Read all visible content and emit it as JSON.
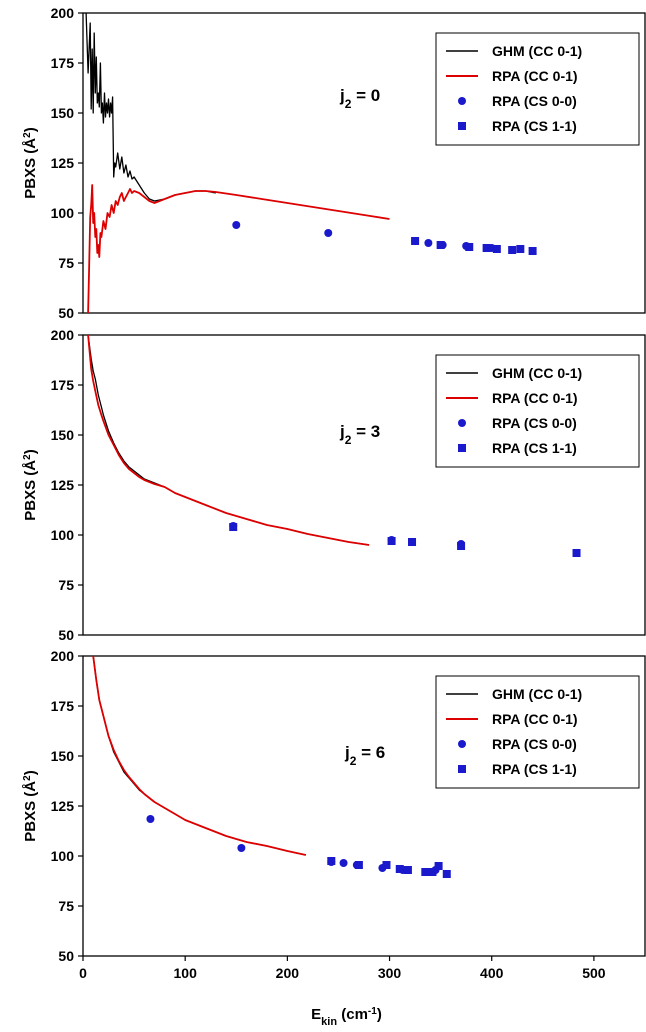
{
  "chart_data": [
    {
      "type": "line",
      "panel": "top",
      "annotation": {
        "main": "j",
        "sub": "2",
        "rest": " = 0"
      },
      "ylabel": {
        "main": "PBXS (Å",
        "sup": "2",
        "end": ")"
      },
      "xlim": [
        0,
        550
      ],
      "ylim": [
        50,
        200
      ],
      "yticks": [
        50,
        75,
        100,
        125,
        150,
        175,
        200
      ],
      "xticks": [],
      "legend_position": "top-right",
      "legend": [
        "GHM (CC 0-1)",
        "RPA  (CC 0-1)",
        "RPA  (CS 0-0)",
        "RPA  (CS 1-1)"
      ],
      "series": [
        {
          "name": "GHM (CC 0-1)",
          "kind": "line",
          "color": "#000000",
          "x": [
            3,
            5,
            7,
            8,
            9,
            10,
            11,
            12,
            13,
            14,
            15,
            16,
            17,
            18,
            19,
            20,
            21,
            22,
            23,
            24,
            25,
            26,
            27,
            28,
            29,
            30,
            31,
            32,
            34,
            36,
            38,
            40,
            42,
            44,
            46,
            48,
            50,
            55,
            60,
            65,
            70,
            80,
            90,
            100,
            110,
            120,
            130
          ],
          "y": [
            200,
            170,
            195,
            152,
            182,
            150,
            190,
            160,
            178,
            155,
            160,
            153,
            175,
            150,
            155,
            145,
            160,
            148,
            155,
            150,
            157,
            148,
            155,
            150,
            158,
            118,
            125,
            123,
            130,
            122,
            128,
            120,
            124,
            118,
            121,
            117,
            118,
            114,
            110,
            107,
            106,
            107,
            109,
            110,
            111,
            111,
            110
          ]
        },
        {
          "name": "RPA  (CC 0-1)",
          "kind": "line",
          "color": "#dd0000",
          "x": [
            5,
            6,
            7,
            8,
            9,
            10,
            11,
            12,
            13,
            14,
            15,
            16,
            17,
            18,
            19,
            20,
            22,
            24,
            26,
            28,
            30,
            32,
            34,
            36,
            38,
            40,
            42,
            44,
            46,
            48,
            50,
            55,
            60,
            65,
            70,
            75,
            80,
            90,
            100,
            110,
            120,
            130,
            150,
            175,
            200,
            225,
            250,
            275,
            300
          ],
          "y": [
            50,
            72,
            98,
            104,
            114,
            95,
            100,
            88,
            92,
            80,
            84,
            78,
            90,
            88,
            92,
            96,
            92,
            100,
            98,
            104,
            100,
            106,
            104,
            108,
            110,
            106,
            108,
            110,
            112,
            110,
            111,
            110,
            108,
            106,
            105,
            106,
            107,
            109,
            110,
            111,
            111,
            110.5,
            109,
            107,
            105,
            103,
            101,
            99,
            97
          ]
        },
        {
          "name": "RPA  (CS 0-0)",
          "kind": "scatter",
          "marker": "circle",
          "color": "#1a1acc",
          "x": [
            150,
            240,
            325,
            338,
            352,
            375,
            400
          ],
          "y": [
            94,
            90,
            86,
            85,
            84,
            83.5,
            82.5
          ]
        },
        {
          "name": "RPA  (CS 1-1)",
          "kind": "scatter",
          "marker": "square",
          "color": "#1a1acc",
          "x": [
            325,
            350,
            378,
            395,
            405,
            420,
            428,
            440
          ],
          "y": [
            86,
            84,
            83,
            82.5,
            82,
            81.5,
            82,
            81
          ]
        }
      ]
    },
    {
      "type": "line",
      "panel": "middle",
      "annotation": {
        "main": "j",
        "sub": "2",
        "rest": " = 3"
      },
      "ylabel": {
        "main": "PBXS (Å",
        "sup": "2",
        "end": ")"
      },
      "xlim": [
        0,
        550
      ],
      "ylim": [
        50,
        200
      ],
      "yticks": [
        50,
        75,
        100,
        125,
        150,
        175,
        200
      ],
      "xticks": [],
      "legend_position": "top-right",
      "legend": [
        "GHM (CC 0-1)",
        "RPA  (CC 0-1)",
        "RPA  (CS 0-0)",
        "RPA  (CS 1-1)"
      ],
      "series": [
        {
          "name": "GHM (CC 0-1)",
          "kind": "line",
          "color": "#000000",
          "x": [
            5,
            8,
            10,
            12,
            15,
            18,
            20,
            25,
            30,
            35,
            40,
            45,
            50,
            55,
            60,
            70,
            80,
            90,
            100,
            120,
            140,
            160,
            180,
            200,
            220,
            240,
            260,
            280
          ],
          "y": [
            200,
            188,
            182,
            178,
            170,
            164,
            160,
            152,
            146,
            141,
            137,
            134,
            132,
            130,
            128,
            126,
            124,
            121,
            119,
            115,
            111,
            108,
            105,
            103,
            100.5,
            98.5,
            96.5,
            95
          ]
        },
        {
          "name": "RPA  (CC 0-1)",
          "kind": "line",
          "color": "#dd0000",
          "x": [
            5,
            8,
            10,
            12,
            15,
            18,
            20,
            25,
            30,
            35,
            40,
            45,
            50,
            55,
            60,
            70,
            80,
            90,
            100,
            120,
            140,
            160,
            180,
            200,
            220,
            240,
            260,
            280
          ],
          "y": [
            200,
            183,
            177,
            172,
            165,
            160,
            157,
            150,
            145,
            140,
            136,
            133,
            131,
            129,
            127.5,
            125.5,
            124,
            121,
            119,
            115,
            111,
            108,
            105,
            103,
            100.5,
            98.5,
            96.5,
            95
          ]
        },
        {
          "name": "RPA  (CS 0-0)",
          "kind": "scatter",
          "marker": "circle",
          "color": "#1a1acc",
          "x": [
            147,
            302,
            322,
            370
          ],
          "y": [
            104.5,
            97.5,
            96.5,
            95.5
          ]
        },
        {
          "name": "RPA  (CS 1-1)",
          "kind": "scatter",
          "marker": "square",
          "color": "#1a1acc",
          "x": [
            147,
            302,
            322,
            370,
            483
          ],
          "y": [
            104,
            97,
            96.5,
            94.5,
            91
          ]
        }
      ]
    },
    {
      "type": "line",
      "panel": "bottom",
      "annotation": {
        "main": "j",
        "sub": "2",
        "rest": " = 6"
      },
      "ylabel": {
        "main": "PBXS (Å",
        "sup": "2",
        "end": ")"
      },
      "xlabel": {
        "main": "E",
        "sub": "kin",
        "mid": " (cm",
        "sup": "-1",
        "end": ")"
      },
      "xlim": [
        0,
        550
      ],
      "ylim": [
        50,
        200
      ],
      "yticks": [
        50,
        75,
        100,
        125,
        150,
        175,
        200
      ],
      "xticks": [
        0,
        100,
        200,
        300,
        400,
        500
      ],
      "legend_position": "top-right",
      "legend": [
        "GHM (CC 0-1)",
        "RPA  (CC 0-1)",
        "RPA  (CS 0-0)",
        "RPA  (CS 1-1)"
      ],
      "series": [
        {
          "name": "GHM (CC 0-1)",
          "kind": "line",
          "color": "#000000",
          "x": [
            10,
            13,
            16,
            20,
            25,
            30,
            35,
            40,
            45,
            50,
            55,
            60,
            70,
            80,
            90,
            100,
            120,
            140,
            160,
            180,
            200,
            218
          ],
          "y": [
            200,
            188,
            178,
            170,
            160,
            152,
            147,
            142,
            139,
            136,
            133,
            131,
            127,
            124,
            121,
            118,
            114,
            110,
            107,
            105,
            102.5,
            100.5
          ]
        },
        {
          "name": "RPA  (CC 0-1)",
          "kind": "line",
          "color": "#dd0000",
          "x": [
            10,
            13,
            16,
            20,
            25,
            30,
            35,
            40,
            45,
            50,
            55,
            60,
            70,
            80,
            90,
            100,
            120,
            140,
            160,
            180,
            200,
            218
          ],
          "y": [
            200,
            188,
            178,
            170,
            160,
            153,
            147.5,
            143,
            139.5,
            136.5,
            133.5,
            131,
            127,
            124,
            121,
            118,
            114,
            110,
            107,
            105,
            102.5,
            100.5
          ]
        },
        {
          "name": "RPA  (CS 0-0)",
          "kind": "scatter",
          "marker": "circle",
          "color": "#1a1acc",
          "x": [
            66,
            155,
            243,
            255,
            268,
            293,
            313,
            337,
            345
          ],
          "y": [
            118.5,
            104,
            97,
            96.5,
            95.5,
            94,
            93,
            92,
            93
          ]
        },
        {
          "name": "RPA  (CS 1-1)",
          "kind": "scatter",
          "marker": "square",
          "color": "#1a1acc",
          "x": [
            243,
            270,
            297,
            310,
            318,
            335,
            342,
            348,
            356
          ],
          "y": [
            97.5,
            95.5,
            95.5,
            93.5,
            93,
            92,
            92,
            95,
            91
          ]
        }
      ]
    }
  ]
}
